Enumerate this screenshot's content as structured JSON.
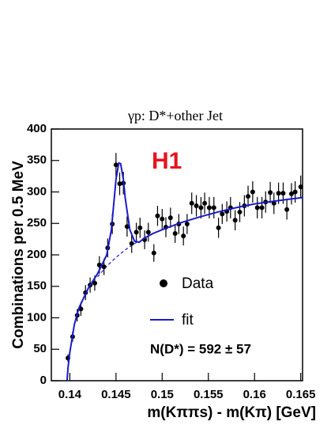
{
  "chart_data": {
    "type": "scatter",
    "title": "γp: D*+other Jet",
    "x_label": "m(Kππs) - m(Kπ) [GeV]",
    "y_label": "Combinations per 0.5 MeV",
    "annotations": [
      "H1",
      "N(D*) = 592 ± 57"
    ],
    "xlim": [
      0.138,
      0.1652
    ],
    "ylim": [
      0,
      400
    ],
    "xticks": [
      0.14,
      0.145,
      0.15,
      0.155,
      0.16,
      0.165
    ],
    "yticks": [
      0,
      50,
      100,
      150,
      200,
      250,
      300,
      350,
      400
    ],
    "series": [
      {
        "name": "Data",
        "color": "#000000",
        "x": [
          0.1398,
          0.1403,
          0.1408,
          0.1412,
          0.1417,
          0.1422,
          0.1427,
          0.1432,
          0.1437,
          0.1441,
          0.1446,
          0.145,
          0.1454,
          0.1458,
          0.1462,
          0.1467,
          0.1472,
          0.1476,
          0.1481,
          0.1485,
          0.1491,
          0.1495,
          0.15,
          0.1504,
          0.1509,
          0.1514,
          0.1518,
          0.1523,
          0.1527,
          0.1532,
          0.1537,
          0.1542,
          0.1546,
          0.1551,
          0.1556,
          0.1561,
          0.1565,
          0.157,
          0.1574,
          0.1579,
          0.1584,
          0.1589,
          0.1593,
          0.1598,
          0.1603,
          0.1608,
          0.1612,
          0.1617,
          0.1621,
          0.1626,
          0.1631,
          0.1635,
          0.164,
          0.1644,
          0.165
        ],
        "values": [
          36,
          70,
          104,
          114,
          140,
          152,
          155,
          184,
          181,
          211,
          249,
          343,
          313,
          314,
          245,
          218,
          236,
          243,
          224,
          236,
          203,
          262,
          257,
          244,
          259,
          234,
          249,
          230,
          249,
          282,
          278,
          275,
          282,
          275,
          275,
          243,
          265,
          269,
          275,
          255,
          268,
          278,
          293,
          300,
          275,
          275,
          284,
          299,
          282,
          298,
          298,
          272,
          297,
          300,
          308
        ],
        "errors": [
          6,
          8,
          10,
          11,
          12,
          12,
          12,
          14,
          13,
          15,
          16,
          19,
          18,
          18,
          16,
          15,
          15,
          16,
          15,
          15,
          14,
          16,
          16,
          16,
          16,
          15,
          16,
          15,
          16,
          17,
          17,
          17,
          17,
          17,
          17,
          16,
          16,
          16,
          17,
          16,
          16,
          17,
          17,
          17,
          17,
          17,
          17,
          17,
          17,
          17,
          17,
          16,
          17,
          17,
          18
        ]
      },
      {
        "name": "fit",
        "color": "#1a1acc",
        "x": [
          0.1397,
          0.1398,
          0.14,
          0.1405,
          0.141,
          0.142,
          0.143,
          0.144,
          0.1445,
          0.145,
          0.1453,
          0.1455,
          0.1458,
          0.146,
          0.1465,
          0.147,
          0.1475,
          0.148,
          0.149,
          0.15,
          0.152,
          0.154,
          0.156,
          0.158,
          0.16,
          0.162,
          0.164,
          0.1652
        ],
        "values": [
          0,
          20,
          45,
          90,
          116,
          147,
          170,
          200,
          240,
          320,
          346,
          345,
          320,
          290,
          240,
          222,
          220,
          226,
          234,
          240,
          251,
          260,
          268,
          275,
          281,
          285,
          289,
          291
        ]
      },
      {
        "color": "#1a1acc",
        "dashed": true,
        "x": [
          0.143,
          0.144,
          0.145,
          0.146,
          0.147,
          0.1475
        ],
        "values": [
          165,
          182,
          196,
          208,
          218,
          222
        ]
      }
    ]
  }
}
